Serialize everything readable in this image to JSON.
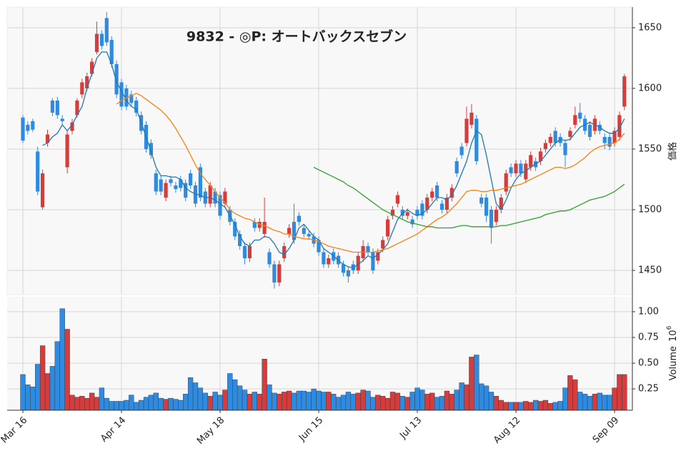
{
  "chart_data": {
    "type": "candlestick",
    "title": "9832 - ◎P: オートバックスセブン",
    "ylabel": "価格",
    "categories": [
      "Mar 16",
      null,
      null,
      null,
      null,
      null,
      null,
      null,
      null,
      null,
      null,
      null,
      null,
      null,
      null,
      null,
      null,
      null,
      null,
      null,
      "Apr 14",
      null,
      null,
      null,
      null,
      null,
      null,
      null,
      null,
      null,
      null,
      null,
      null,
      null,
      null,
      null,
      null,
      null,
      null,
      null,
      "May 18",
      null,
      null,
      null,
      null,
      null,
      null,
      null,
      null,
      null,
      null,
      null,
      null,
      null,
      null,
      null,
      null,
      null,
      null,
      null,
      "Jun 15",
      null,
      null,
      null,
      null,
      null,
      null,
      null,
      null,
      null,
      null,
      null,
      null,
      null,
      null,
      null,
      null,
      null,
      null,
      null,
      "Jul 13",
      null,
      null,
      null,
      null,
      null,
      null,
      null,
      null,
      null,
      null,
      null,
      null,
      null,
      null,
      null,
      null,
      null,
      null,
      null,
      "Aug 12",
      null,
      null,
      null,
      null,
      null,
      null,
      null,
      null,
      null,
      null,
      null,
      null,
      null,
      null,
      null,
      null,
      null,
      null,
      null,
      "Sep 09",
      null,
      null
    ],
    "open": [
      1576,
      1570,
      1573,
      1548,
      1502,
      1555,
      1590,
      1590,
      1575,
      1535,
      1565,
      1578,
      1595,
      1600,
      1612,
      1630,
      1645,
      1658,
      1640,
      1620,
      1605,
      1600,
      1595,
      1590,
      1578,
      1570,
      1555,
      1530,
      1525,
      1510,
      1525,
      1520,
      1525,
      1522,
      1530,
      1520,
      1535,
      1515,
      1505,
      1515,
      1512,
      1505,
      1500,
      1490,
      1480,
      1470,
      1460,
      1490,
      1485,
      1480,
      1465,
      1455,
      1440,
      1460,
      1480,
      1490,
      1495,
      1485,
      1480,
      1478,
      1475,
      1465,
      1455,
      1465,
      1462,
      1455,
      1450,
      1455,
      1450,
      1460,
      1470,
      1465,
      1458,
      1468,
      1478,
      1495,
      1505,
      1500,
      1495,
      1492,
      1500,
      1505,
      1500,
      1510,
      1520,
      1505,
      1500,
      1510,
      1540,
      1552,
      1555,
      1570,
      1575,
      1510,
      1510,
      1500,
      1490,
      1500,
      1515,
      1535,
      1530,
      1538,
      1525,
      1535,
      1540,
      1540,
      1550,
      1555,
      1565,
      1560,
      1555,
      1560,
      1570,
      1580,
      1575,
      1570,
      1565,
      1570,
      1560,
      1560,
      1555,
      1560,
      1585
    ],
    "high": [
      1578,
      1573,
      1575,
      1552,
      1533,
      1566,
      1592,
      1593,
      1578,
      1565,
      1575,
      1592,
      1608,
      1613,
      1625,
      1655,
      1648,
      1663,
      1643,
      1623,
      1608,
      1603,
      1598,
      1593,
      1581,
      1573,
      1558,
      1533,
      1528,
      1525,
      1528,
      1523,
      1528,
      1525,
      1533,
      1523,
      1538,
      1518,
      1523,
      1518,
      1515,
      1518,
      1503,
      1493,
      1483,
      1473,
      1473,
      1493,
      1493,
      1510,
      1468,
      1458,
      1458,
      1473,
      1488,
      1505,
      1498,
      1488,
      1483,
      1481,
      1478,
      1468,
      1463,
      1468,
      1465,
      1458,
      1453,
      1458,
      1465,
      1475,
      1473,
      1468,
      1468,
      1478,
      1495,
      1503,
      1515,
      1503,
      1501,
      1495,
      1503,
      1508,
      1513,
      1518,
      1523,
      1508,
      1513,
      1521,
      1543,
      1555,
      1585,
      1587,
      1578,
      1513,
      1513,
      1503,
      1503,
      1513,
      1533,
      1538,
      1541,
      1541,
      1541,
      1548,
      1543,
      1551,
      1558,
      1563,
      1568,
      1563,
      1558,
      1568,
      1585,
      1588,
      1578,
      1573,
      1578,
      1573,
      1563,
      1563,
      1568,
      1581,
      1612
    ],
    "low": [
      1555,
      1562,
      1564,
      1512,
      1500,
      1552,
      1577,
      1575,
      1570,
      1530,
      1562,
      1576,
      1592,
      1598,
      1610,
      1628,
      1632,
      1635,
      1617,
      1592,
      1582,
      1582,
      1585,
      1577,
      1562,
      1547,
      1542,
      1512,
      1512,
      1507,
      1519,
      1514,
      1515,
      1507,
      1517,
      1502,
      1507,
      1502,
      1502,
      1502,
      1492,
      1502,
      1487,
      1475,
      1467,
      1455,
      1457,
      1482,
      1482,
      1477,
      1452,
      1435,
      1437,
      1457,
      1477,
      1472,
      1487,
      1477,
      1475,
      1469,
      1462,
      1452,
      1452,
      1455,
      1452,
      1445,
      1440,
      1447,
      1447,
      1457,
      1462,
      1447,
      1455,
      1465,
      1475,
      1492,
      1502,
      1492,
      1492,
      1485,
      1492,
      1492,
      1497,
      1507,
      1507,
      1497,
      1497,
      1507,
      1527,
      1542,
      1552,
      1567,
      1537,
      1502,
      1490,
      1472,
      1487,
      1497,
      1512,
      1527,
      1527,
      1527,
      1522,
      1532,
      1532,
      1537,
      1547,
      1552,
      1552,
      1552,
      1535,
      1557,
      1567,
      1572,
      1562,
      1557,
      1562,
      1562,
      1550,
      1549,
      1552,
      1557,
      1582
    ],
    "close": [
      1557,
      1565,
      1566,
      1515,
      1530,
      1562,
      1580,
      1578,
      1573,
      1562,
      1572,
      1590,
      1605,
      1610,
      1622,
      1645,
      1635,
      1638,
      1620,
      1595,
      1585,
      1585,
      1588,
      1580,
      1565,
      1550,
      1545,
      1515,
      1515,
      1522,
      1522,
      1517,
      1518,
      1510,
      1520,
      1505,
      1510,
      1505,
      1520,
      1505,
      1495,
      1515,
      1490,
      1478,
      1470,
      1460,
      1470,
      1485,
      1490,
      1490,
      1455,
      1440,
      1455,
      1470,
      1485,
      1475,
      1490,
      1480,
      1478,
      1472,
      1465,
      1455,
      1460,
      1458,
      1455,
      1448,
      1445,
      1450,
      1462,
      1470,
      1465,
      1450,
      1465,
      1475,
      1492,
      1500,
      1512,
      1495,
      1498,
      1488,
      1495,
      1495,
      1510,
      1515,
      1510,
      1500,
      1510,
      1518,
      1530,
      1545,
      1575,
      1580,
      1540,
      1505,
      1495,
      1485,
      1500,
      1510,
      1530,
      1530,
      1538,
      1530,
      1538,
      1545,
      1535,
      1548,
      1555,
      1560,
      1555,
      1555,
      1545,
      1565,
      1578,
      1575,
      1565,
      1560,
      1575,
      1565,
      1555,
      1552,
      1565,
      1578,
      1610
    ],
    "up_color": "#d43d3d",
    "down_color": "#2f8be0",
    "ylim": [
      1430,
      1667
    ],
    "yticks": [
      1450,
      1500,
      1550,
      1600,
      1650
    ],
    "grid": true,
    "moving_averages": [
      {
        "color": "#1f77b4",
        "values": [
          null,
          null,
          null,
          null,
          1553,
          1555,
          1560,
          1563,
          1570,
          1565,
          1570,
          1578,
          1585,
          1600,
          1612,
          1625,
          1630,
          1630,
          1620,
          1605,
          1598,
          1590,
          1585,
          1583,
          1572,
          1560,
          1548,
          1535,
          1528,
          1528,
          1527,
          1527,
          1525,
          1518,
          1515,
          1513,
          1512,
          1510,
          1510,
          1508,
          1505,
          1502,
          1495,
          1488,
          1478,
          1472,
          1470,
          1475,
          1475,
          1478,
          1477,
          1472,
          1465,
          1463,
          1468,
          1475,
          1485,
          1488,
          1483,
          1478,
          1475,
          1468,
          1465,
          1462,
          1458,
          1455,
          1453,
          1452,
          1455,
          1458,
          1462,
          1460,
          1463,
          1467,
          1472,
          1482,
          1492,
          1497,
          1500,
          1497,
          1495,
          1497,
          1500,
          1505,
          1510,
          1510,
          1508,
          1512,
          1520,
          1530,
          1540,
          1555,
          1565,
          1562,
          1545,
          1525,
          1505,
          1500,
          1508,
          1518,
          1525,
          1530,
          1532,
          1535,
          1538,
          1540,
          1545,
          1550,
          1555,
          1558,
          1557,
          1558,
          1563,
          1568,
          1570,
          1572,
          1570,
          1568,
          1565,
          1563,
          1563,
          1567,
          1575
        ]
      },
      {
        "color": "#ff7f0e",
        "values": [
          null,
          null,
          null,
          null,
          null,
          null,
          null,
          null,
          null,
          null,
          null,
          null,
          null,
          null,
          null,
          null,
          null,
          null,
          null,
          1587,
          1590,
          1592,
          1594,
          1596,
          1594,
          1591,
          1588,
          1585,
          1582,
          1578,
          1573,
          1567,
          1560,
          1553,
          1545,
          1537,
          1530,
          1525,
          1520,
          1515,
          1510,
          1506,
          1500,
          1497,
          1495,
          1493,
          1492,
          1490,
          1488,
          1487,
          1485,
          1483,
          1482,
          1480,
          1480,
          1478,
          1477,
          1476,
          1476,
          1475,
          1474,
          1472,
          1470,
          1469,
          1468,
          1467,
          1466,
          1465,
          1465,
          1465,
          1465,
          1465,
          1466,
          1467,
          1468,
          1470,
          1472,
          1474,
          1476,
          1478,
          1480,
          1483,
          1486,
          1489,
          1492,
          1494,
          1497,
          1501,
          1505,
          1510,
          1515,
          1516,
          1516,
          1515,
          1515,
          1516,
          1516,
          1517,
          1518,
          1519,
          1520,
          1521,
          1523,
          1525,
          1527,
          1529,
          1531,
          1533,
          1535,
          1535,
          1534,
          1535,
          1537,
          1540,
          1543,
          1547,
          1550,
          1552,
          1553,
          1554,
          1555,
          1558,
          1563
        ]
      },
      {
        "color": "#2ca02c",
        "values": [
          null,
          null,
          null,
          null,
          null,
          null,
          null,
          null,
          null,
          null,
          null,
          null,
          null,
          null,
          null,
          null,
          null,
          null,
          null,
          null,
          null,
          null,
          null,
          null,
          null,
          null,
          null,
          null,
          null,
          null,
          null,
          null,
          null,
          null,
          null,
          null,
          null,
          null,
          null,
          null,
          null,
          null,
          null,
          null,
          null,
          null,
          null,
          null,
          null,
          null,
          null,
          null,
          null,
          null,
          null,
          null,
          null,
          null,
          null,
          1535,
          1533,
          1531,
          1529,
          1527,
          1525,
          1523,
          1520,
          1518,
          1515,
          1512,
          1509,
          1506,
          1503,
          1500,
          1498,
          1496,
          1494,
          1492,
          1490,
          1489,
          1488,
          1487,
          1486,
          1486,
          1485,
          1485,
          1485,
          1485,
          1486,
          1487,
          1487,
          1486,
          1486,
          1486,
          1486,
          1486,
          1486,
          1487,
          1487,
          1488,
          1489,
          1490,
          1491,
          1492,
          1493,
          1494,
          1496,
          1497,
          1498,
          1499,
          1499,
          1500,
          1502,
          1504,
          1506,
          1508,
          1509,
          1510,
          1511,
          1513,
          1515,
          1518,
          1521
        ]
      }
    ],
    "volume": {
      "ylabel": "Volume",
      "multiplier_base": "10",
      "multiplier_exponent": "6",
      "values": [
        0.39,
        0.29,
        0.27,
        0.49,
        0.67,
        0.4,
        0.47,
        0.71,
        1.03,
        0.83,
        0.19,
        0.17,
        0.18,
        0.16,
        0.21,
        0.17,
        0.26,
        0.16,
        0.13,
        0.13,
        0.13,
        0.14,
        0.19,
        0.12,
        0.14,
        0.17,
        0.19,
        0.21,
        0.16,
        0.15,
        0.16,
        0.15,
        0.14,
        0.2,
        0.36,
        0.31,
        0.26,
        0.21,
        0.18,
        0.22,
        0.19,
        0.24,
        0.4,
        0.34,
        0.28,
        0.24,
        0.2,
        0.22,
        0.2,
        0.54,
        0.29,
        0.21,
        0.2,
        0.22,
        0.23,
        0.21,
        0.23,
        0.23,
        0.22,
        0.25,
        0.23,
        0.22,
        0.22,
        0.2,
        0.17,
        0.19,
        0.22,
        0.2,
        0.21,
        0.24,
        0.23,
        0.17,
        0.19,
        0.18,
        0.16,
        0.22,
        0.21,
        0.18,
        0.17,
        0.22,
        0.26,
        0.24,
        0.2,
        0.21,
        0.17,
        0.18,
        0.23,
        0.2,
        0.24,
        0.31,
        0.29,
        0.56,
        0.58,
        0.3,
        0.28,
        0.22,
        0.18,
        0.14,
        0.12,
        0.12,
        0.12,
        0.12,
        0.13,
        0.12,
        0.14,
        0.13,
        0.14,
        0.11,
        0.12,
        0.13,
        0.26,
        0.38,
        0.34,
        0.22,
        0.2,
        0.18,
        0.2,
        0.21,
        0.19,
        0.19,
        0.26,
        0.39,
        0.39
      ],
      "ylim": [
        0.043,
        1.145
      ],
      "yticks": [
        {
          "value": 0.25,
          "label": "0.25"
        },
        {
          "value": 0.5,
          "label": "0.50"
        },
        {
          "value": 0.75,
          "label": "0.75"
        },
        {
          "value": 1.0,
          "label": "1.00"
        }
      ]
    }
  }
}
